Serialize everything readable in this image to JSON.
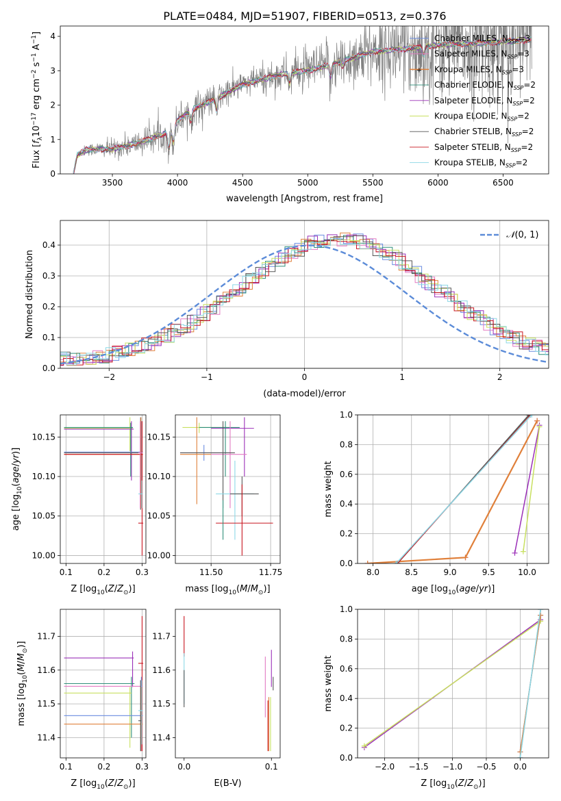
{
  "figure_title": "PLATE=0484, MJD=51907, FIBERID=0513, z=0.376",
  "colors": {
    "Chabrier MILES": "#6a8ce0",
    "Salpeter MILES": "#e37ac2",
    "Kroupa MILES": "#e0803a",
    "Chabrier ELODIE": "#2f8f7a",
    "Salpeter ELODIE": "#9b30b8",
    "Kroupa ELODIE": "#c8e060",
    "Chabrier STELIB": "#555555",
    "Salpeter STELIB": "#c8141e",
    "Kroupa STELIB": "#8cd8e6",
    "data": "#7f7f7f",
    "normal": "#5b8bd8"
  },
  "chart_data": [
    {
      "id": "spectrum",
      "type": "line",
      "xlabel": "wavelength [Angstrom, rest frame]",
      "ylabel": "Flux [f_λ 10^-17 erg cm^-2 s^-1 A^-1]",
      "xlim": [
        3100,
        6850
      ],
      "ylim": [
        0,
        4.3
      ],
      "xticks": [
        3500,
        4000,
        4500,
        5000,
        5500,
        6000,
        6500
      ],
      "yticks": [
        0,
        1,
        2,
        3,
        4
      ],
      "grid": false,
      "legend": "upper-right",
      "legend_entries": [
        {
          "name": "Chabrier MILES",
          "nssp": "3"
        },
        {
          "name": "Salpeter MILES",
          "nssp": "3"
        },
        {
          "name": "Kroupa MILES",
          "nssp": "3"
        },
        {
          "name": "Chabrier ELODIE",
          "nssp": "2"
        },
        {
          "name": "Salpeter ELODIE",
          "nssp": "2"
        },
        {
          "name": "Kroupa ELODIE",
          "nssp": "2"
        },
        {
          "name": "Chabrier STELIB",
          "nssp": "2"
        },
        {
          "name": "Salpeter STELIB",
          "nssp": "2"
        },
        {
          "name": "Kroupa STELIB",
          "nssp": "2"
        }
      ],
      "continuum": [
        [
          3200,
          0.0
        ],
        [
          3230,
          0.55
        ],
        [
          3300,
          0.7
        ],
        [
          3400,
          0.72
        ],
        [
          3500,
          0.72
        ],
        [
          3700,
          0.9
        ],
        [
          3850,
          1.1
        ],
        [
          3950,
          1.25
        ],
        [
          4000,
          1.55
        ],
        [
          4100,
          1.85
        ],
        [
          4300,
          2.2
        ],
        [
          4500,
          2.6
        ],
        [
          4700,
          2.8
        ],
        [
          4860,
          2.95
        ],
        [
          5000,
          3.0
        ],
        [
          5200,
          3.2
        ],
        [
          5500,
          3.55
        ],
        [
          5800,
          3.65
        ],
        [
          6000,
          3.75
        ],
        [
          6300,
          3.8
        ],
        [
          6500,
          3.85
        ],
        [
          6700,
          3.9
        ]
      ],
      "absorption_features": [
        [
          3934,
          0.5
        ],
        [
          3969,
          0.45
        ],
        [
          4102,
          0.3
        ],
        [
          4300,
          0.35
        ],
        [
          4861,
          0.3
        ],
        [
          5175,
          0.35
        ],
        [
          5270,
          0.15
        ],
        [
          5890,
          0.25
        ]
      ],
      "noise_level": [
        [
          3200,
          0.05
        ],
        [
          3500,
          0.15
        ],
        [
          4000,
          0.25
        ],
        [
          4500,
          0.2
        ],
        [
          5000,
          0.3
        ],
        [
          5500,
          0.5
        ],
        [
          6000,
          0.8
        ],
        [
          6400,
          0.9
        ],
        [
          6700,
          1.0
        ]
      ]
    },
    {
      "id": "residuals",
      "type": "histogram",
      "xlabel": "(data-model)/error",
      "ylabel": "Normed distribution",
      "xlim": [
        -2.5,
        2.5
      ],
      "ylim": [
        0,
        0.48
      ],
      "xticks": [
        -2,
        -1,
        0,
        1,
        2
      ],
      "yticks": [
        0.0,
        0.1,
        0.2,
        0.3,
        0.4
      ],
      "grid": true,
      "legend": "upper-right",
      "normal_label": "N(0,1)",
      "normal_mean": 0.05,
      "bins": 50,
      "hist_shape": {
        "center": 0.35,
        "sigma": 1.0,
        "peak": 0.42
      }
    },
    {
      "id": "age-vs-Z",
      "type": "errorbar",
      "xlabel": "Z [log10(Z/Z⊙)]",
      "ylabel": "age [log10(age/yr)]",
      "xlim": [
        0.085,
        0.31
      ],
      "ylim": [
        9.99,
        10.178
      ],
      "xticks": [
        0.1,
        0.2,
        0.3
      ],
      "yticks": [
        10.0,
        10.05,
        10.1,
        10.15
      ],
      "grid": true,
      "points": [
        {
          "model": "Kroupa ELODIE",
          "x": 0.268,
          "xlo": 0.095,
          "xhi": 0.275,
          "y": 10.161,
          "ylo": 10.132,
          "yhi": 10.175
        },
        {
          "model": "Salpeter ELODIE",
          "x": 0.272,
          "xlo": 0.095,
          "xhi": 0.278,
          "y": 10.16,
          "ylo": 10.095,
          "yhi": 10.17
        },
        {
          "model": "Chabrier ELODIE",
          "x": 0.27,
          "xlo": 0.095,
          "xhi": 0.276,
          "y": 10.162,
          "ylo": 10.1,
          "yhi": 10.168
        },
        {
          "model": "Chabrier MILES",
          "x": 0.298,
          "xlo": 0.095,
          "xhi": 0.302,
          "y": 10.131,
          "ylo": 10.06,
          "yhi": 10.17
        },
        {
          "model": "Chabrier STELIB",
          "x": 0.296,
          "xlo": 0.095,
          "xhi": 0.3,
          "y": 10.13,
          "ylo": 10.058,
          "yhi": 10.175
        },
        {
          "model": "Kroupa MILES",
          "x": 0.297,
          "xlo": 0.095,
          "xhi": 0.302,
          "y": 10.128,
          "ylo": 10.06,
          "yhi": 10.175
        },
        {
          "model": "Salpeter STELIB",
          "x": 0.3,
          "xlo": 0.095,
          "xhi": 0.302,
          "y": 10.128,
          "ylo": 10.06,
          "yhi": 10.17
        },
        {
          "model": "Salpeter MILES",
          "x": 0.295,
          "xlo": 0.29,
          "xhi": 0.301,
          "y": 10.13,
          "ylo": 10.06,
          "yhi": 10.17
        },
        {
          "model": "Kroupa STELIB",
          "x": 0.299,
          "xlo": 0.29,
          "xhi": 0.302,
          "y": 10.078,
          "ylo": 10.06,
          "yhi": 10.095
        },
        {
          "model": "Salpeter STELIB",
          "x": 0.3,
          "xlo": 0.29,
          "xhi": 0.303,
          "y": 10.041,
          "ylo": 10.0,
          "yhi": 10.06
        }
      ]
    },
    {
      "id": "age-vs-mass",
      "type": "errorbar",
      "xlabel": "mass [log10(M/M⊙)]",
      "ylabel": "",
      "xlim": [
        11.35,
        11.79
      ],
      "ylim": [
        9.99,
        10.178
      ],
      "xticks": [
        11.5,
        11.75
      ],
      "yticks": [
        10.0,
        10.05,
        10.1,
        10.15
      ],
      "grid": true,
      "points": [
        {
          "model": "Kroupa ELODIE",
          "x": 11.45,
          "xlo": 11.38,
          "xhi": 11.58,
          "y": 10.162,
          "ylo": 10.155,
          "yhi": 10.168
        },
        {
          "model": "Salpeter ELODIE",
          "x": 11.64,
          "xlo": 11.5,
          "xhi": 11.68,
          "y": 10.161,
          "ylo": 10.1,
          "yhi": 10.175
        },
        {
          "model": "Chabrier ELODIE",
          "x": 11.56,
          "xlo": 11.45,
          "xhi": 11.62,
          "y": 10.162,
          "ylo": 10.1,
          "yhi": 10.17
        },
        {
          "model": "Chabrier MILES",
          "x": 11.47,
          "xlo": 11.37,
          "xhi": 11.58,
          "y": 10.13,
          "ylo": 10.12,
          "yhi": 10.14
        },
        {
          "model": "Salpeter MILES",
          "x": 11.58,
          "xlo": 11.5,
          "xhi": 11.65,
          "y": 10.128,
          "ylo": 10.06,
          "yhi": 10.17
        },
        {
          "model": "Kroupa MILES",
          "x": 11.44,
          "xlo": 11.37,
          "xhi": 11.5,
          "y": 10.128,
          "ylo": 10.065,
          "yhi": 10.175
        },
        {
          "model": "Chabrier STELIB",
          "x": 11.55,
          "xlo": 11.37,
          "xhi": 11.6,
          "y": 10.13,
          "ylo": 10.06,
          "yhi": 10.17
        },
        {
          "model": "Kroupa STELIB",
          "x": 11.6,
          "xlo": 11.52,
          "xhi": 11.68,
          "y": 10.078,
          "ylo": 10.02,
          "yhi": 10.12
        },
        {
          "model": "Chabrier STELIB",
          "x": 11.63,
          "xlo": 11.58,
          "xhi": 11.7,
          "y": 10.078,
          "ylo": 10.05,
          "yhi": 10.1
        },
        {
          "model": "Salpeter STELIB",
          "x": 11.63,
          "xlo": 11.52,
          "xhi": 11.76,
          "y": 10.041,
          "ylo": 10.0,
          "yhi": 10.09
        },
        {
          "model": "Chabrier ELODIE",
          "x": 11.55,
          "xlo": 11.55,
          "xhi": 11.55,
          "y": 10.04,
          "ylo": 10.02,
          "yhi": 10.07
        }
      ]
    },
    {
      "id": "weight-vs-age",
      "type": "line",
      "xlabel": "age [log10(age/yr)]",
      "ylabel": "mass weight",
      "xlim": [
        7.8,
        10.28
      ],
      "ylim": [
        0.0,
        1.0
      ],
      "xticks": [
        8.0,
        8.5,
        9.0,
        9.5,
        10.0
      ],
      "yticks": [
        0.0,
        0.2,
        0.4,
        0.6,
        0.8,
        1.0
      ],
      "grid": true,
      "series": [
        {
          "model": "Chabrier MILES",
          "points": [
            [
              7.93,
              0.0
            ],
            [
              9.2,
              0.04
            ],
            [
              10.13,
              0.96
            ]
          ],
          "width": 1.5
        },
        {
          "model": "Salpeter MILES",
          "points": [
            [
              7.93,
              0.0
            ],
            [
              9.2,
              0.04
            ],
            [
              10.13,
              0.96
            ]
          ],
          "width": 1.5
        },
        {
          "model": "Kroupa MILES",
          "points": [
            [
              7.93,
              0.0
            ],
            [
              9.2,
              0.04
            ],
            [
              10.13,
              0.96
            ]
          ],
          "width": 2.2
        },
        {
          "model": "Chabrier ELODIE",
          "points": [
            [
              8.32,
              0.0
            ],
            [
              10.03,
              1.0
            ]
          ],
          "width": 1.0
        },
        {
          "model": "Salpeter ELODIE",
          "points": [
            [
              9.84,
              0.07
            ],
            [
              10.16,
              0.93
            ]
          ],
          "width": 1.5
        },
        {
          "model": "Kroupa ELODIE",
          "points": [
            [
              9.95,
              0.08
            ],
            [
              10.16,
              0.92
            ]
          ],
          "width": 1.5
        },
        {
          "model": "Chabrier STELIB",
          "points": [
            [
              8.32,
              0.0
            ],
            [
              10.02,
              1.0
            ]
          ],
          "width": 1.0
        },
        {
          "model": "Salpeter STELIB",
          "points": [
            [
              8.32,
              0.0
            ],
            [
              10.04,
              1.0
            ]
          ],
          "width": 1.0
        },
        {
          "model": "Kroupa STELIB",
          "points": [
            [
              8.3,
              0.0
            ],
            [
              10.06,
              1.0
            ]
          ],
          "width": 1.5
        }
      ]
    },
    {
      "id": "mass-vs-Z",
      "type": "errorbar",
      "xlabel": "Z [log10(Z/Z⊙)]",
      "ylabel": "mass [log10(M/M⊙)]",
      "xlim": [
        0.085,
        0.31
      ],
      "ylim": [
        11.34,
        11.78
      ],
      "xticks": [
        0.1,
        0.2,
        0.3
      ],
      "yticks": [
        11.4,
        11.5,
        11.6,
        11.7
      ],
      "grid": true,
      "points": [
        {
          "model": "Salpeter ELODIE",
          "x": 0.275,
          "xlo": 0.095,
          "xhi": 0.278,
          "y": 11.636,
          "ylo": 11.55,
          "yhi": 11.655
        },
        {
          "model": "Salpeter STELIB",
          "x": 0.3,
          "xlo": 0.29,
          "xhi": 0.303,
          "y": 11.62,
          "ylo": 11.36,
          "yhi": 11.76
        },
        {
          "model": "Chabrier ELODIE",
          "x": 0.272,
          "xlo": 0.095,
          "xhi": 0.28,
          "y": 11.56,
          "ylo": 11.4,
          "yhi": 11.58
        },
        {
          "model": "Salpeter MILES",
          "x": 0.298,
          "xlo": 0.095,
          "xhi": 0.302,
          "y": 11.552,
          "ylo": 11.36,
          "yhi": 11.57
        },
        {
          "model": "Kroupa ELODIE",
          "x": 0.268,
          "xlo": 0.095,
          "xhi": 0.272,
          "y": 11.532,
          "ylo": 11.37,
          "yhi": 11.55
        },
        {
          "model": "Chabrier MILES",
          "x": 0.298,
          "xlo": 0.095,
          "xhi": 0.302,
          "y": 11.465,
          "ylo": 11.38,
          "yhi": 11.58
        },
        {
          "model": "Kroupa MILES",
          "x": 0.297,
          "xlo": 0.095,
          "xhi": 0.302,
          "y": 11.44,
          "ylo": 11.36,
          "yhi": 11.55
        },
        {
          "model": "Chabrier STELIB",
          "x": 0.296,
          "xlo": 0.29,
          "xhi": 0.3,
          "y": 11.45,
          "ylo": 11.36,
          "yhi": 11.57
        },
        {
          "model": "Kroupa STELIB",
          "x": 0.299,
          "xlo": 0.29,
          "xhi": 0.302,
          "y": 11.48,
          "ylo": 11.38,
          "yhi": 11.57
        }
      ]
    },
    {
      "id": "mass-vs-ebv",
      "type": "errorbar",
      "xlabel": "E(B-V)",
      "ylabel": "",
      "xlim": [
        -0.01,
        0.11
      ],
      "ylim": [
        11.34,
        11.78
      ],
      "xticks": [
        0.0,
        0.1
      ],
      "yticks": [
        11.4,
        11.5,
        11.6,
        11.7
      ],
      "grid": false,
      "points": [
        {
          "model": "Salpeter STELIB",
          "x": 0.0,
          "xlo": 0.0,
          "xhi": 0.0,
          "y": 11.7,
          "ylo": 11.64,
          "yhi": 11.76
        },
        {
          "model": "Kroupa STELIB",
          "x": 0.0,
          "xlo": 0.0,
          "xhi": 0.0,
          "y": 11.58,
          "ylo": 11.5,
          "yhi": 11.65
        },
        {
          "model": "Chabrier STELIB",
          "x": 0.0,
          "xlo": 0.0,
          "xhi": 0.0,
          "y": 11.55,
          "ylo": 11.49,
          "yhi": 11.6
        },
        {
          "model": "Salpeter MILES",
          "x": 0.093,
          "xlo": 0.093,
          "xhi": 0.093,
          "y": 11.55,
          "ylo": 11.46,
          "yhi": 11.64
        },
        {
          "model": "Salpeter STELIB",
          "x": 0.096,
          "xlo": 0.096,
          "xhi": 0.096,
          "y": 11.45,
          "ylo": 11.36,
          "yhi": 11.51
        },
        {
          "model": "Kroupa MILES",
          "x": 0.097,
          "xlo": 0.097,
          "xhi": 0.097,
          "y": 11.44,
          "ylo": 11.36,
          "yhi": 11.52
        },
        {
          "model": "Salpeter ELODIE",
          "x": 0.1,
          "xlo": 0.1,
          "xhi": 0.1,
          "y": 11.6,
          "ylo": 11.55,
          "yhi": 11.66
        },
        {
          "model": "Kroupa ELODIE",
          "x": 0.099,
          "xlo": 0.099,
          "xhi": 0.099,
          "y": 11.45,
          "ylo": 11.36,
          "yhi": 11.52
        },
        {
          "model": "Chabrier STELIB",
          "x": 0.102,
          "xlo": 0.102,
          "xhi": 0.102,
          "y": 11.56,
          "ylo": 11.54,
          "yhi": 11.58
        }
      ]
    },
    {
      "id": "weight-vs-Z",
      "type": "line",
      "xlabel": "Z [log10(Z/Z⊙)]",
      "ylabel": "mass weight",
      "xlim": [
        -2.4,
        0.42
      ],
      "ylim": [
        0.0,
        1.0
      ],
      "xticks": [
        -2.0,
        -1.5,
        -1.0,
        -0.5,
        0.0
      ],
      "yticks": [
        0.0,
        0.2,
        0.4,
        0.6,
        0.8,
        1.0
      ],
      "grid": true,
      "series": [
        {
          "model": "Salpeter ELODIE",
          "points": [
            [
              -2.3,
              0.07
            ],
            [
              0.3,
              0.93
            ]
          ],
          "width": 1.5
        },
        {
          "model": "Kroupa ELODIE",
          "points": [
            [
              -2.3,
              0.08
            ],
            [
              0.3,
              0.92
            ]
          ],
          "width": 1.5
        },
        {
          "model": "Chabrier MILES",
          "points": [
            [
              0.0,
              0.04
            ],
            [
              0.3,
              0.96
            ]
          ],
          "width": 1.5
        },
        {
          "model": "Kroupa MILES",
          "points": [
            [
              0.0,
              0.04
            ],
            [
              0.3,
              0.96
            ]
          ],
          "width": 1.5
        },
        {
          "model": "Chabrier STELIB",
          "points": [
            [
              0.0,
              0.0
            ],
            [
              0.3,
              1.0
            ]
          ],
          "width": 1.0
        },
        {
          "model": "Kroupa STELIB",
          "points": [
            [
              0.0,
              0.0
            ],
            [
              0.3,
              1.0
            ]
          ],
          "width": 1.5
        }
      ]
    }
  ]
}
